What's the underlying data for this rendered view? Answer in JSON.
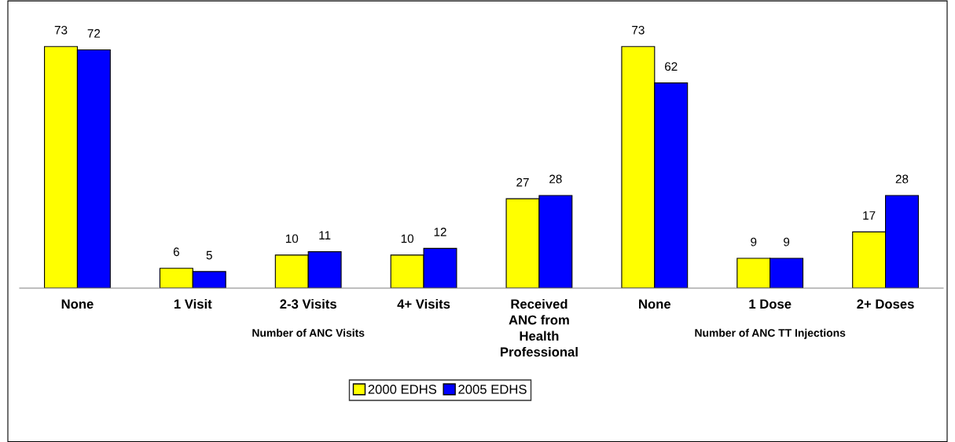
{
  "chart_data": {
    "type": "bar",
    "categories": [
      "None",
      "1 Visit",
      "2-3 Visits",
      "4+ Visits",
      "Received\nANC from\nHealth\nProfessional",
      "None",
      "1 Dose",
      "2+ Doses"
    ],
    "series": [
      {
        "name": "2000 EDHS",
        "color": "#ffff00",
        "values": [
          73,
          6,
          10,
          10,
          27,
          73,
          9,
          17
        ]
      },
      {
        "name": "2005 EDHS",
        "color": "#0000ff",
        "values": [
          72,
          5,
          11,
          12,
          28,
          62,
          9,
          28
        ]
      }
    ],
    "data_labels": true,
    "grid": false,
    "legend": "bottom",
    "tick_labels": "x",
    "annotations": [
      "Number of ANC Visits",
      "Number of ANC TT Injections"
    ]
  }
}
